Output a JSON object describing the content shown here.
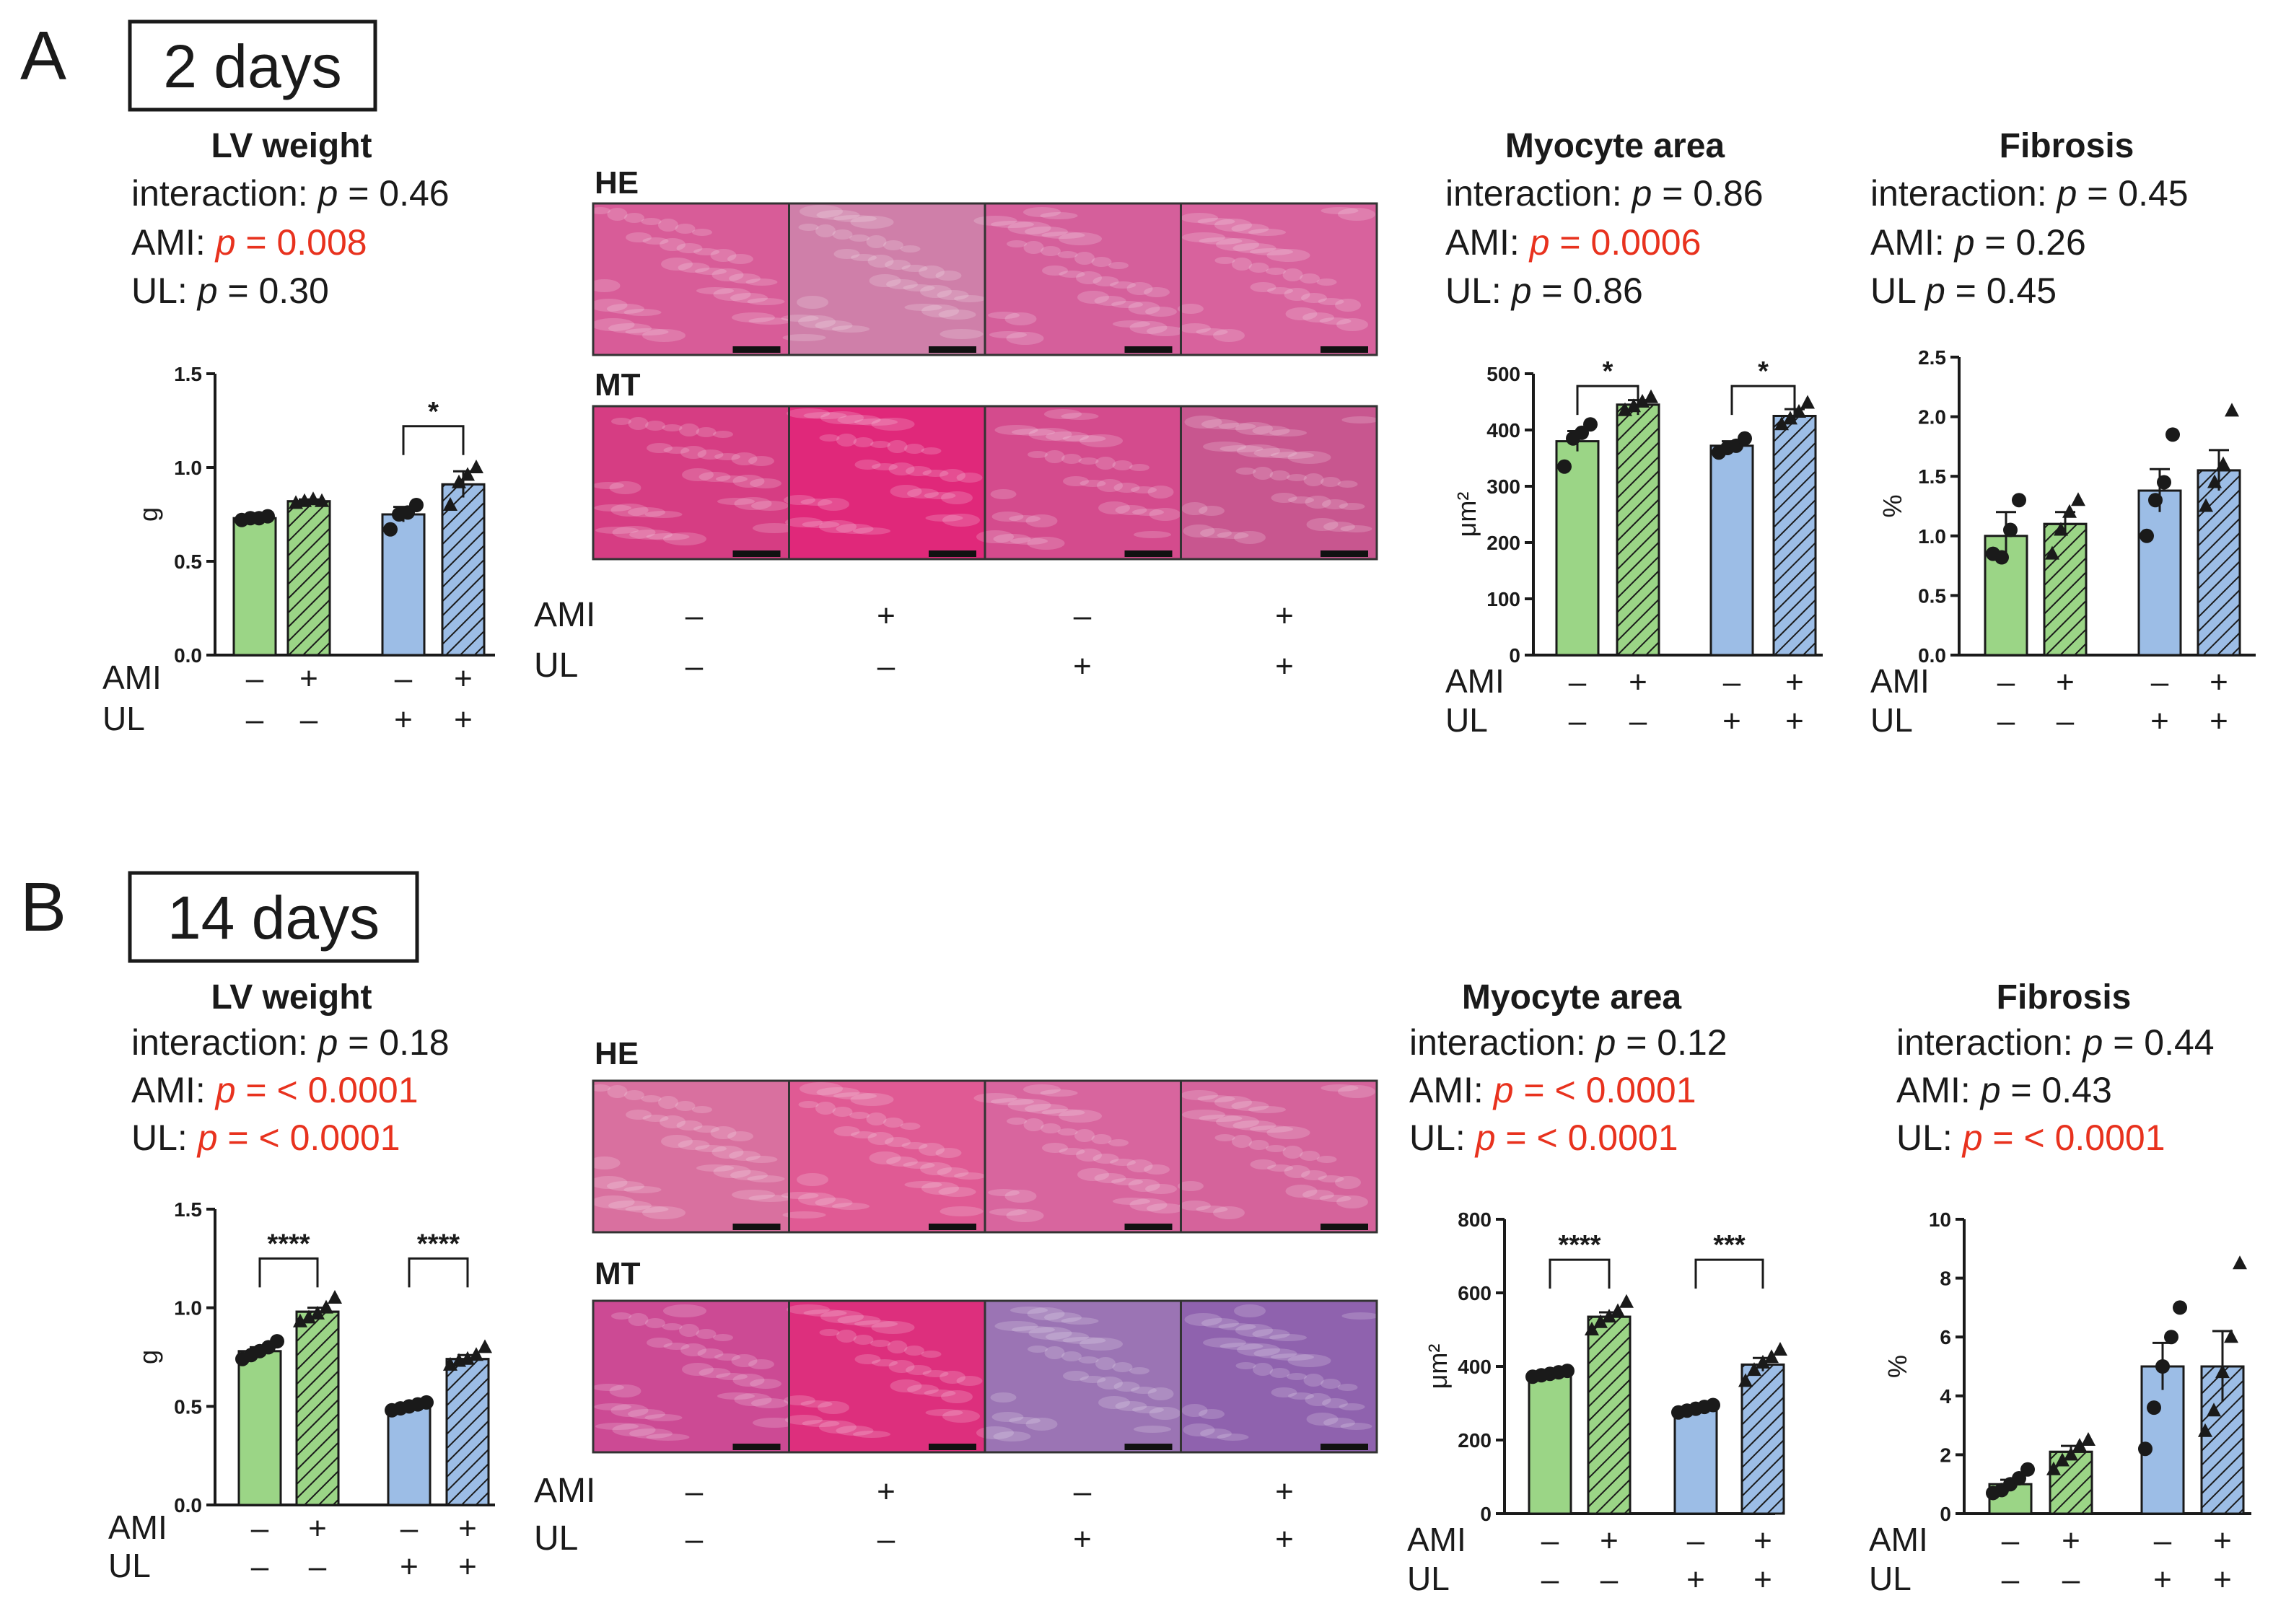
{
  "colors": {
    "green": "#9bd586",
    "blue": "#9cbde6",
    "sig": "#e8321e",
    "text": "#1a1a1a",
    "hatch": "#1a1a1a"
  },
  "panels": [
    {
      "id": "A",
      "letter": "A",
      "title": "2 days",
      "histology": {
        "rows": [
          "HE",
          "MT"
        ],
        "factors": [
          {
            "label": "AMI",
            "signs": [
              "–",
              "+",
              "–",
              "+"
            ]
          },
          {
            "label": "UL",
            "signs": [
              "–",
              "–",
              "+",
              "+"
            ]
          }
        ],
        "tones": {
          "HE": [
            "#d85c98",
            "#cf7fa9",
            "#d55f9b",
            "#d8629d"
          ],
          "MT": [
            "#d63d83",
            "#e0287a",
            "#d44b8d",
            "#c8568f"
          ]
        }
      }
    },
    {
      "id": "B",
      "letter": "B",
      "title": "14 days",
      "histology": {
        "rows": [
          "HE",
          "MT"
        ],
        "factors": [
          {
            "label": "AMI",
            "signs": [
              "–",
              "+",
              "–",
              "+"
            ]
          },
          {
            "label": "UL",
            "signs": [
              "–",
              "–",
              "+",
              "+"
            ]
          }
        ],
        "tones": {
          "HE": [
            "#d9709f",
            "#e05a94",
            "#d8659e",
            "#d5639b"
          ],
          "MT": [
            "#cc4a94",
            "#dd2f7d",
            "#9b74b4",
            "#8f62ae"
          ]
        }
      }
    }
  ],
  "chart_data": [
    {
      "type": "bar",
      "panel": "A",
      "title": "LV weight",
      "stats": [
        {
          "label": "interaction: ",
          "p": "p",
          "value": " = 0.46",
          "significant": false
        },
        {
          "label": "AMI: ",
          "p": "p",
          "value": " = 0.008",
          "significant": true
        },
        {
          "label": "UL: ",
          "p": "p",
          "value": " = 0.30",
          "significant": false
        }
      ],
      "ylabel": "g",
      "ylim": [
        0,
        1.5
      ],
      "yticks": [
        "0.0",
        "0.5",
        "1.0",
        "1.5"
      ],
      "yticks_values": [
        0,
        0.5,
        1.0,
        1.5
      ],
      "groups": [
        {
          "factors": {
            "AMI": "–",
            "UL": "–"
          },
          "mean": 0.73,
          "sem": 0.01,
          "points": [
            0.72,
            0.73,
            0.73,
            0.74
          ]
        },
        {
          "factors": {
            "AMI": "+",
            "UL": "–"
          },
          "mean": 0.82,
          "sem": 0.01,
          "points": [
            0.81,
            0.82,
            0.83,
            0.82
          ]
        },
        {
          "factors": {
            "AMI": "–",
            "UL": "+"
          },
          "mean": 0.75,
          "sem": 0.04,
          "points": [
            0.67,
            0.75,
            0.76,
            0.8
          ]
        },
        {
          "factors": {
            "AMI": "+",
            "UL": "+"
          },
          "mean": 0.91,
          "sem": 0.07,
          "points": [
            0.8,
            0.92,
            0.96,
            1.0
          ]
        }
      ],
      "brackets": [
        {
          "from": 2,
          "to": 3,
          "label": "*",
          "y": 1.22
        }
      ],
      "factor_labels": [
        "AMI",
        "UL"
      ]
    },
    {
      "type": "bar",
      "panel": "A",
      "title": "Myocyte area",
      "stats": [
        {
          "label": "interaction: ",
          "p": "p",
          "value": " = 0.86",
          "significant": false
        },
        {
          "label": "AMI: ",
          "p": "p",
          "value": " = 0.0006",
          "significant": true
        },
        {
          "label": "UL: ",
          "p": "p",
          "value": " = 0.86",
          "significant": false
        }
      ],
      "ylabel": "μm²",
      "ylim": [
        0,
        500
      ],
      "yticks": [
        "0",
        "100",
        "200",
        "300",
        "400",
        "500"
      ],
      "yticks_values": [
        0,
        100,
        200,
        300,
        400,
        500
      ],
      "groups": [
        {
          "factors": {
            "AMI": "–",
            "UL": "–"
          },
          "mean": 380,
          "sem": 18,
          "points": [
            335,
            385,
            395,
            410
          ]
        },
        {
          "factors": {
            "AMI": "+",
            "UL": "–"
          },
          "mean": 445,
          "sem": 8,
          "points": [
            435,
            442,
            450,
            458
          ]
        },
        {
          "factors": {
            "AMI": "–",
            "UL": "+"
          },
          "mean": 372,
          "sem": 8,
          "points": [
            360,
            368,
            372,
            385
          ]
        },
        {
          "factors": {
            "AMI": "+",
            "UL": "+"
          },
          "mean": 425,
          "sem": 12,
          "points": [
            410,
            420,
            432,
            448
          ]
        }
      ],
      "brackets": [
        {
          "from": 0,
          "to": 1,
          "label": "*",
          "y": 478
        },
        {
          "from": 2,
          "to": 3,
          "label": "*",
          "y": 478
        }
      ],
      "factor_labels": [
        "AMI",
        "UL"
      ]
    },
    {
      "type": "bar",
      "panel": "A",
      "title": "Fibrosis",
      "stats": [
        {
          "label": "interaction: ",
          "p": "p",
          "value": " = 0.45",
          "significant": false
        },
        {
          "label": "AMI: ",
          "p": "p",
          "value": " = 0.26",
          "significant": false
        },
        {
          "label": "UL ",
          "p": "p",
          "value": " = 0.45",
          "significant": false
        }
      ],
      "ylabel": "%",
      "ylim": [
        0,
        2.5
      ],
      "yticks": [
        "0.0",
        "0.5",
        "1.0",
        "1.5",
        "2.0",
        "2.5"
      ],
      "yticks_values": [
        0,
        0.5,
        1.0,
        1.5,
        2.0,
        2.5
      ],
      "groups": [
        {
          "factors": {
            "AMI": "–",
            "UL": "–"
          },
          "mean": 1.0,
          "sem": 0.2,
          "points": [
            0.85,
            0.82,
            1.05,
            1.3
          ]
        },
        {
          "factors": {
            "AMI": "+",
            "UL": "–"
          },
          "mean": 1.1,
          "sem": 0.1,
          "points": [
            0.85,
            1.05,
            1.2,
            1.3
          ]
        },
        {
          "factors": {
            "AMI": "–",
            "UL": "+"
          },
          "mean": 1.38,
          "sem": 0.18,
          "points": [
            1.0,
            1.3,
            1.45,
            1.85
          ]
        },
        {
          "factors": {
            "AMI": "+",
            "UL": "+"
          },
          "mean": 1.55,
          "sem": 0.17,
          "points": [
            1.25,
            1.45,
            1.6,
            2.05
          ]
        }
      ],
      "brackets": [],
      "factor_labels": [
        "AMI",
        "UL"
      ]
    },
    {
      "type": "bar",
      "panel": "B",
      "title": "LV weight",
      "stats": [
        {
          "label": "interaction: ",
          "p": "p",
          "value": " = 0.18",
          "significant": false
        },
        {
          "label": "AMI: ",
          "p": "p",
          "value": " = < 0.0001",
          "significant": true
        },
        {
          "label": "UL: ",
          "p": "p",
          "value": " = < 0.0001",
          "significant": true
        }
      ],
      "ylabel": "g",
      "ylim": [
        0,
        1.5
      ],
      "yticks": [
        "0.0",
        "0.5",
        "1.0",
        "1.5"
      ],
      "yticks_values": [
        0,
        0.5,
        1.0,
        1.5
      ],
      "groups": [
        {
          "factors": {
            "AMI": "–",
            "UL": "–"
          },
          "mean": 0.78,
          "sem": 0.02,
          "points": [
            0.74,
            0.76,
            0.78,
            0.8,
            0.83
          ]
        },
        {
          "factors": {
            "AMI": "+",
            "UL": "–"
          },
          "mean": 0.98,
          "sem": 0.02,
          "points": [
            0.93,
            0.95,
            0.97,
            1.0,
            1.05
          ]
        },
        {
          "factors": {
            "AMI": "–",
            "UL": "+"
          },
          "mean": 0.5,
          "sem": 0.01,
          "points": [
            0.48,
            0.49,
            0.5,
            0.51,
            0.52
          ]
        },
        {
          "factors": {
            "AMI": "+",
            "UL": "+"
          },
          "mean": 0.74,
          "sem": 0.02,
          "points": [
            0.71,
            0.73,
            0.74,
            0.76,
            0.8
          ]
        }
      ],
      "brackets": [
        {
          "from": 0,
          "to": 1,
          "label": "****",
          "y": 1.25
        },
        {
          "from": 2,
          "to": 3,
          "label": "****",
          "y": 1.25
        }
      ],
      "factor_labels": [
        "AMI",
        "UL"
      ]
    },
    {
      "type": "bar",
      "panel": "B",
      "title": "Myocyte area",
      "stats": [
        {
          "label": "interaction: ",
          "p": "p",
          "value": " = 0.12",
          "significant": false
        },
        {
          "label": "AMI: ",
          "p": "p",
          "value": " = < 0.0001",
          "significant": true
        },
        {
          "label": "UL: ",
          "p": "p",
          "value": " = < 0.0001",
          "significant": true
        }
      ],
      "ylabel": "μm²",
      "ylim": [
        0,
        800
      ],
      "yticks": [
        "0",
        "200",
        "400",
        "600",
        "800"
      ],
      "yticks_values": [
        0,
        200,
        400,
        600,
        800
      ],
      "groups": [
        {
          "factors": {
            "AMI": "–",
            "UL": "–"
          },
          "mean": 380,
          "sem": 5,
          "points": [
            372,
            376,
            380,
            384,
            388
          ]
        },
        {
          "factors": {
            "AMI": "+",
            "UL": "–"
          },
          "mean": 535,
          "sem": 12,
          "points": [
            500,
            520,
            535,
            550,
            575
          ]
        },
        {
          "factors": {
            "AMI": "–",
            "UL": "+"
          },
          "mean": 285,
          "sem": 5,
          "points": [
            275,
            280,
            285,
            290,
            295
          ]
        },
        {
          "factors": {
            "AMI": "+",
            "UL": "+"
          },
          "mean": 405,
          "sem": 18,
          "points": [
            360,
            390,
            410,
            425,
            445
          ]
        }
      ],
      "brackets": [
        {
          "from": 0,
          "to": 1,
          "label": "****",
          "y": 690
        },
        {
          "from": 2,
          "to": 3,
          "label": "***",
          "y": 690
        }
      ],
      "factor_labels": [
        "AMI",
        "UL"
      ]
    },
    {
      "type": "bar",
      "panel": "B",
      "title": "Fibrosis",
      "stats": [
        {
          "label": "interaction: ",
          "p": "p",
          "value": " = 0.44",
          "significant": false
        },
        {
          "label": "AMI: ",
          "p": "p",
          "value": " = 0.43",
          "significant": false
        },
        {
          "label": "UL: ",
          "p": "p",
          "value": " = < 0.0001",
          "significant": true
        }
      ],
      "ylabel": "%",
      "ylim": [
        0,
        10
      ],
      "yticks": [
        "0",
        "2",
        "4",
        "6",
        "8",
        "10"
      ],
      "yticks_values": [
        0,
        2,
        4,
        6,
        8,
        10
      ],
      "groups": [
        {
          "factors": {
            "AMI": "–",
            "UL": "–"
          },
          "mean": 1.0,
          "sem": 0.15,
          "points": [
            0.7,
            0.8,
            1.0,
            1.2,
            1.5
          ]
        },
        {
          "factors": {
            "AMI": "+",
            "UL": "–"
          },
          "mean": 2.1,
          "sem": 0.2,
          "points": [
            1.5,
            1.8,
            2.0,
            2.3,
            2.5
          ]
        },
        {
          "factors": {
            "AMI": "–",
            "UL": "+"
          },
          "mean": 5.0,
          "sem": 0.8,
          "points": [
            2.2,
            3.6,
            5.0,
            6.0,
            7.0
          ]
        },
        {
          "factors": {
            "AMI": "+",
            "UL": "+"
          },
          "mean": 5.0,
          "sem": 1.2,
          "points": [
            2.8,
            3.5,
            4.8,
            6.0,
            8.5
          ]
        }
      ],
      "brackets": [],
      "factor_labels": [
        "AMI",
        "UL"
      ]
    }
  ]
}
